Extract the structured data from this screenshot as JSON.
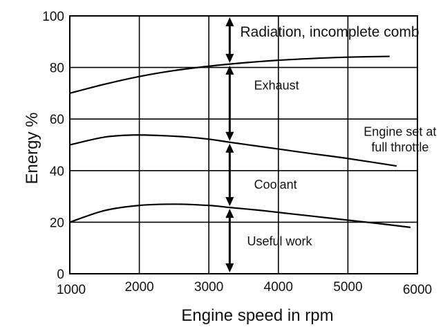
{
  "chart_data": {
    "type": "line",
    "title": "",
    "xlabel": "Engine speed in rpm",
    "ylabel": "Energy %",
    "xlim": [
      1000,
      6000
    ],
    "ylim": [
      0,
      100
    ],
    "x_ticks": [
      1000,
      2000,
      3000,
      4000,
      5000,
      6000
    ],
    "y_ticks": [
      0,
      20,
      40,
      60,
      80,
      100
    ],
    "grid": true,
    "series": [
      {
        "x": [
          1000,
          1500,
          2000,
          2500,
          3000,
          3500,
          4000,
          4500,
          5000,
          5600
        ],
        "values": [
          70,
          73.5,
          76.5,
          78.8,
          80.5,
          81.8,
          82.8,
          83.5,
          84,
          84.3
        ]
      },
      {
        "x": [
          1000,
          1500,
          1900,
          2300,
          2700,
          3000,
          3300,
          3700,
          4100,
          4500,
          5000,
          5700
        ],
        "values": [
          50,
          53,
          53.8,
          53.6,
          53,
          52.2,
          51,
          49.5,
          48,
          46.5,
          44.7,
          41.8
        ]
      },
      {
        "x": [
          1000,
          1500,
          2000,
          2500,
          3000,
          3300,
          3700,
          4100,
          4500,
          5000,
          5500,
          5900
        ],
        "values": [
          20,
          24.5,
          26.5,
          27,
          26.5,
          25.7,
          24.7,
          23.5,
          22.3,
          20.8,
          19.3,
          18
        ]
      }
    ],
    "arrow_x": 3300,
    "annotations": [
      {
        "text": "Radiation, incomplete comb",
        "x": 3450,
        "y": 92
      },
      {
        "text": "Exhaust",
        "x": 3650,
        "y": 71.5
      },
      {
        "text": "Engine set at",
        "x": 5750,
        "y": 53.5
      },
      {
        "text": "full throttle",
        "x": 5750,
        "y": 47.5
      },
      {
        "text": "Coolant",
        "x": 3650,
        "y": 33
      },
      {
        "text": "Useful work",
        "x": 3550,
        "y": 11
      }
    ]
  }
}
